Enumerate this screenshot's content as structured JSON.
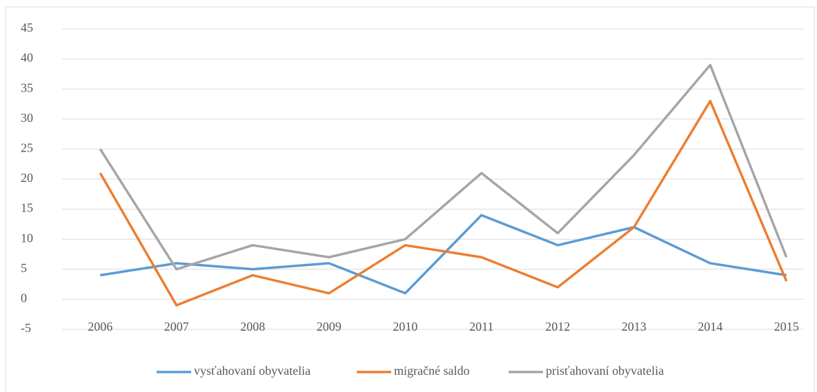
{
  "chart_data": {
    "type": "line",
    "categories": [
      "2006",
      "2007",
      "2008",
      "2009",
      "2010",
      "2011",
      "2012",
      "2013",
      "2014",
      "2015"
    ],
    "series": [
      {
        "name": "vysťahovaní obyvatelia",
        "color": "#5b9bd5",
        "values": [
          4,
          6,
          5,
          6,
          1,
          14,
          9,
          12,
          6,
          4
        ]
      },
      {
        "name": "migračné saldo",
        "color": "#ed7d31",
        "values": [
          21,
          -1,
          4,
          1,
          9,
          7,
          2,
          12,
          33,
          3
        ]
      },
      {
        "name": "prisťahovaní obyvatelia",
        "color": "#a5a5a5",
        "values": [
          25,
          5,
          9,
          7,
          10,
          21,
          11,
          24,
          39,
          7
        ]
      }
    ],
    "ylim": [
      -5,
      45
    ],
    "yticks": [
      -5,
      0,
      5,
      10,
      15,
      20,
      25,
      30,
      35,
      40,
      45
    ],
    "grid": true,
    "legend": "bottom"
  }
}
